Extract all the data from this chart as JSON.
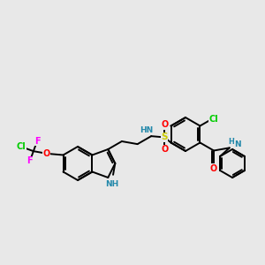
{
  "bg": "#e8e8e8",
  "figsize": [
    3.0,
    3.0
  ],
  "dpi": 100,
  "colors": {
    "C": "#000000",
    "N": "#2288aa",
    "O": "#ff0000",
    "S": "#cccc00",
    "F": "#ff00ff",
    "Cl": "#00cc00",
    "H": "#6699aa",
    "bond": "#000000"
  },
  "bond_lw": 1.4,
  "font_size": 7.0
}
